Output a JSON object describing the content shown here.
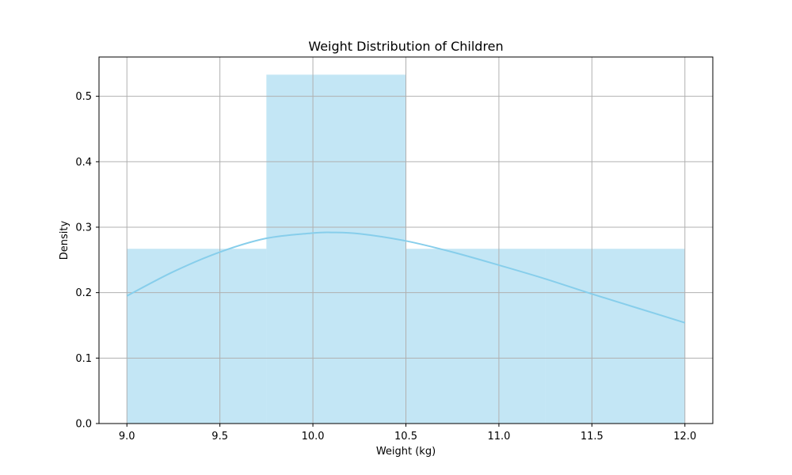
{
  "chart_data": {
    "type": "bar",
    "title": "Weight Distribution of Children",
    "xlabel": "Weight (kg)",
    "ylabel": "Density",
    "xlim": [
      8.85,
      12.15
    ],
    "ylim": [
      0,
      0.56
    ],
    "x_ticks": [
      9.0,
      9.5,
      10.0,
      10.5,
      11.0,
      11.5,
      12.0
    ],
    "x_tick_labels": [
      "9.0",
      "9.5",
      "10.0",
      "10.5",
      "11.0",
      "11.5",
      "12.0"
    ],
    "y_ticks": [
      0.0,
      0.1,
      0.2,
      0.3,
      0.4,
      0.5
    ],
    "y_tick_labels": [
      "0.0",
      "0.1",
      "0.2",
      "0.3",
      "0.4",
      "0.5"
    ],
    "grid": true,
    "bins": [
      {
        "x0": 9.0,
        "x1": 9.75,
        "density": 0.267
      },
      {
        "x0": 9.75,
        "x1": 10.5,
        "density": 0.533
      },
      {
        "x0": 10.5,
        "x1": 11.25,
        "density": 0.267
      },
      {
        "x0": 11.25,
        "x1": 12.0,
        "density": 0.267
      }
    ],
    "kde": {
      "x": [
        9.0,
        9.25,
        9.5,
        9.75,
        10.0,
        10.1,
        10.25,
        10.5,
        10.75,
        11.0,
        11.25,
        11.5,
        11.75,
        12.0
      ],
      "y": [
        0.195,
        0.232,
        0.262,
        0.283,
        0.291,
        0.292,
        0.29,
        0.279,
        0.262,
        0.242,
        0.221,
        0.198,
        0.176,
        0.154
      ]
    },
    "colors": {
      "bar_fill": "#87ceeb",
      "bar_opacity": 0.5,
      "kde_line": "#87ceeb",
      "grid": "#b0b0b0",
      "axes": "#000000"
    }
  }
}
